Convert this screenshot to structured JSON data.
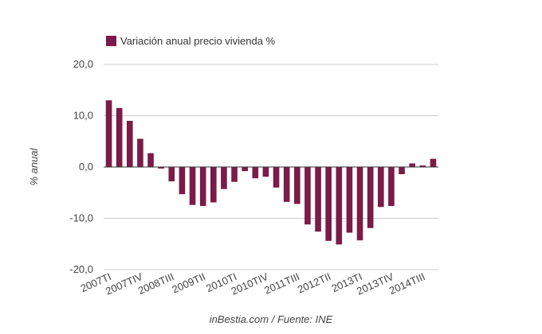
{
  "chart_data": {
    "type": "bar",
    "legend": {
      "label": "Variación anual precio vivienda %",
      "position": "top-left"
    },
    "ylabel": "% anual",
    "footer": "inBestia.com / Fuente: INE",
    "ylim": [
      -20,
      20
    ],
    "y_ticks": [
      "20,0",
      "10,0",
      "0,0",
      "-10,0",
      "-20,0"
    ],
    "y_tick_values": [
      20,
      10,
      0,
      -10,
      -20
    ],
    "grid": true,
    "bar_color": "#7a1b48",
    "categories": [
      "2007TI",
      "2007TII",
      "2007TIII",
      "2007TIV",
      "2008TI",
      "2008TII",
      "2008TIII",
      "2008TIV",
      "2009TI",
      "2009TII",
      "2009TIII",
      "2009TIV",
      "2010TI",
      "2010TII",
      "2010TIII",
      "2010TIV",
      "2011TI",
      "2011TII",
      "2011TIII",
      "2011TIV",
      "2012TI",
      "2012TII",
      "2012TIII",
      "2012TIV",
      "2013TI",
      "2013TII",
      "2013TIII",
      "2013TIV",
      "2014TI",
      "2014TII",
      "2014TIII",
      "2014TIV"
    ],
    "x_tick_labels": [
      "2007TI",
      "2007TIV",
      "2008TIII",
      "2009TII",
      "2010TI",
      "2010TIV",
      "2011TIII",
      "2012TII",
      "2013TI",
      "2013TIV",
      "2014TIII"
    ],
    "x_tick_indices": [
      0,
      3,
      6,
      9,
      12,
      15,
      18,
      21,
      24,
      27,
      30
    ],
    "series": [
      {
        "values": [
          13.0,
          11.5,
          9.0,
          5.5,
          2.7,
          -0.3,
          -2.8,
          -5.3,
          -7.4,
          -7.6,
          -6.9,
          -4.3,
          -2.9,
          -0.8,
          -2.2,
          -1.9,
          -4.0,
          -6.8,
          -7.2,
          -11.2,
          -12.6,
          -14.4,
          -15.1,
          -12.8,
          -14.3,
          -11.9,
          -7.8,
          -7.6,
          -1.4,
          0.7,
          0.3,
          1.6
        ]
      }
    ]
  }
}
